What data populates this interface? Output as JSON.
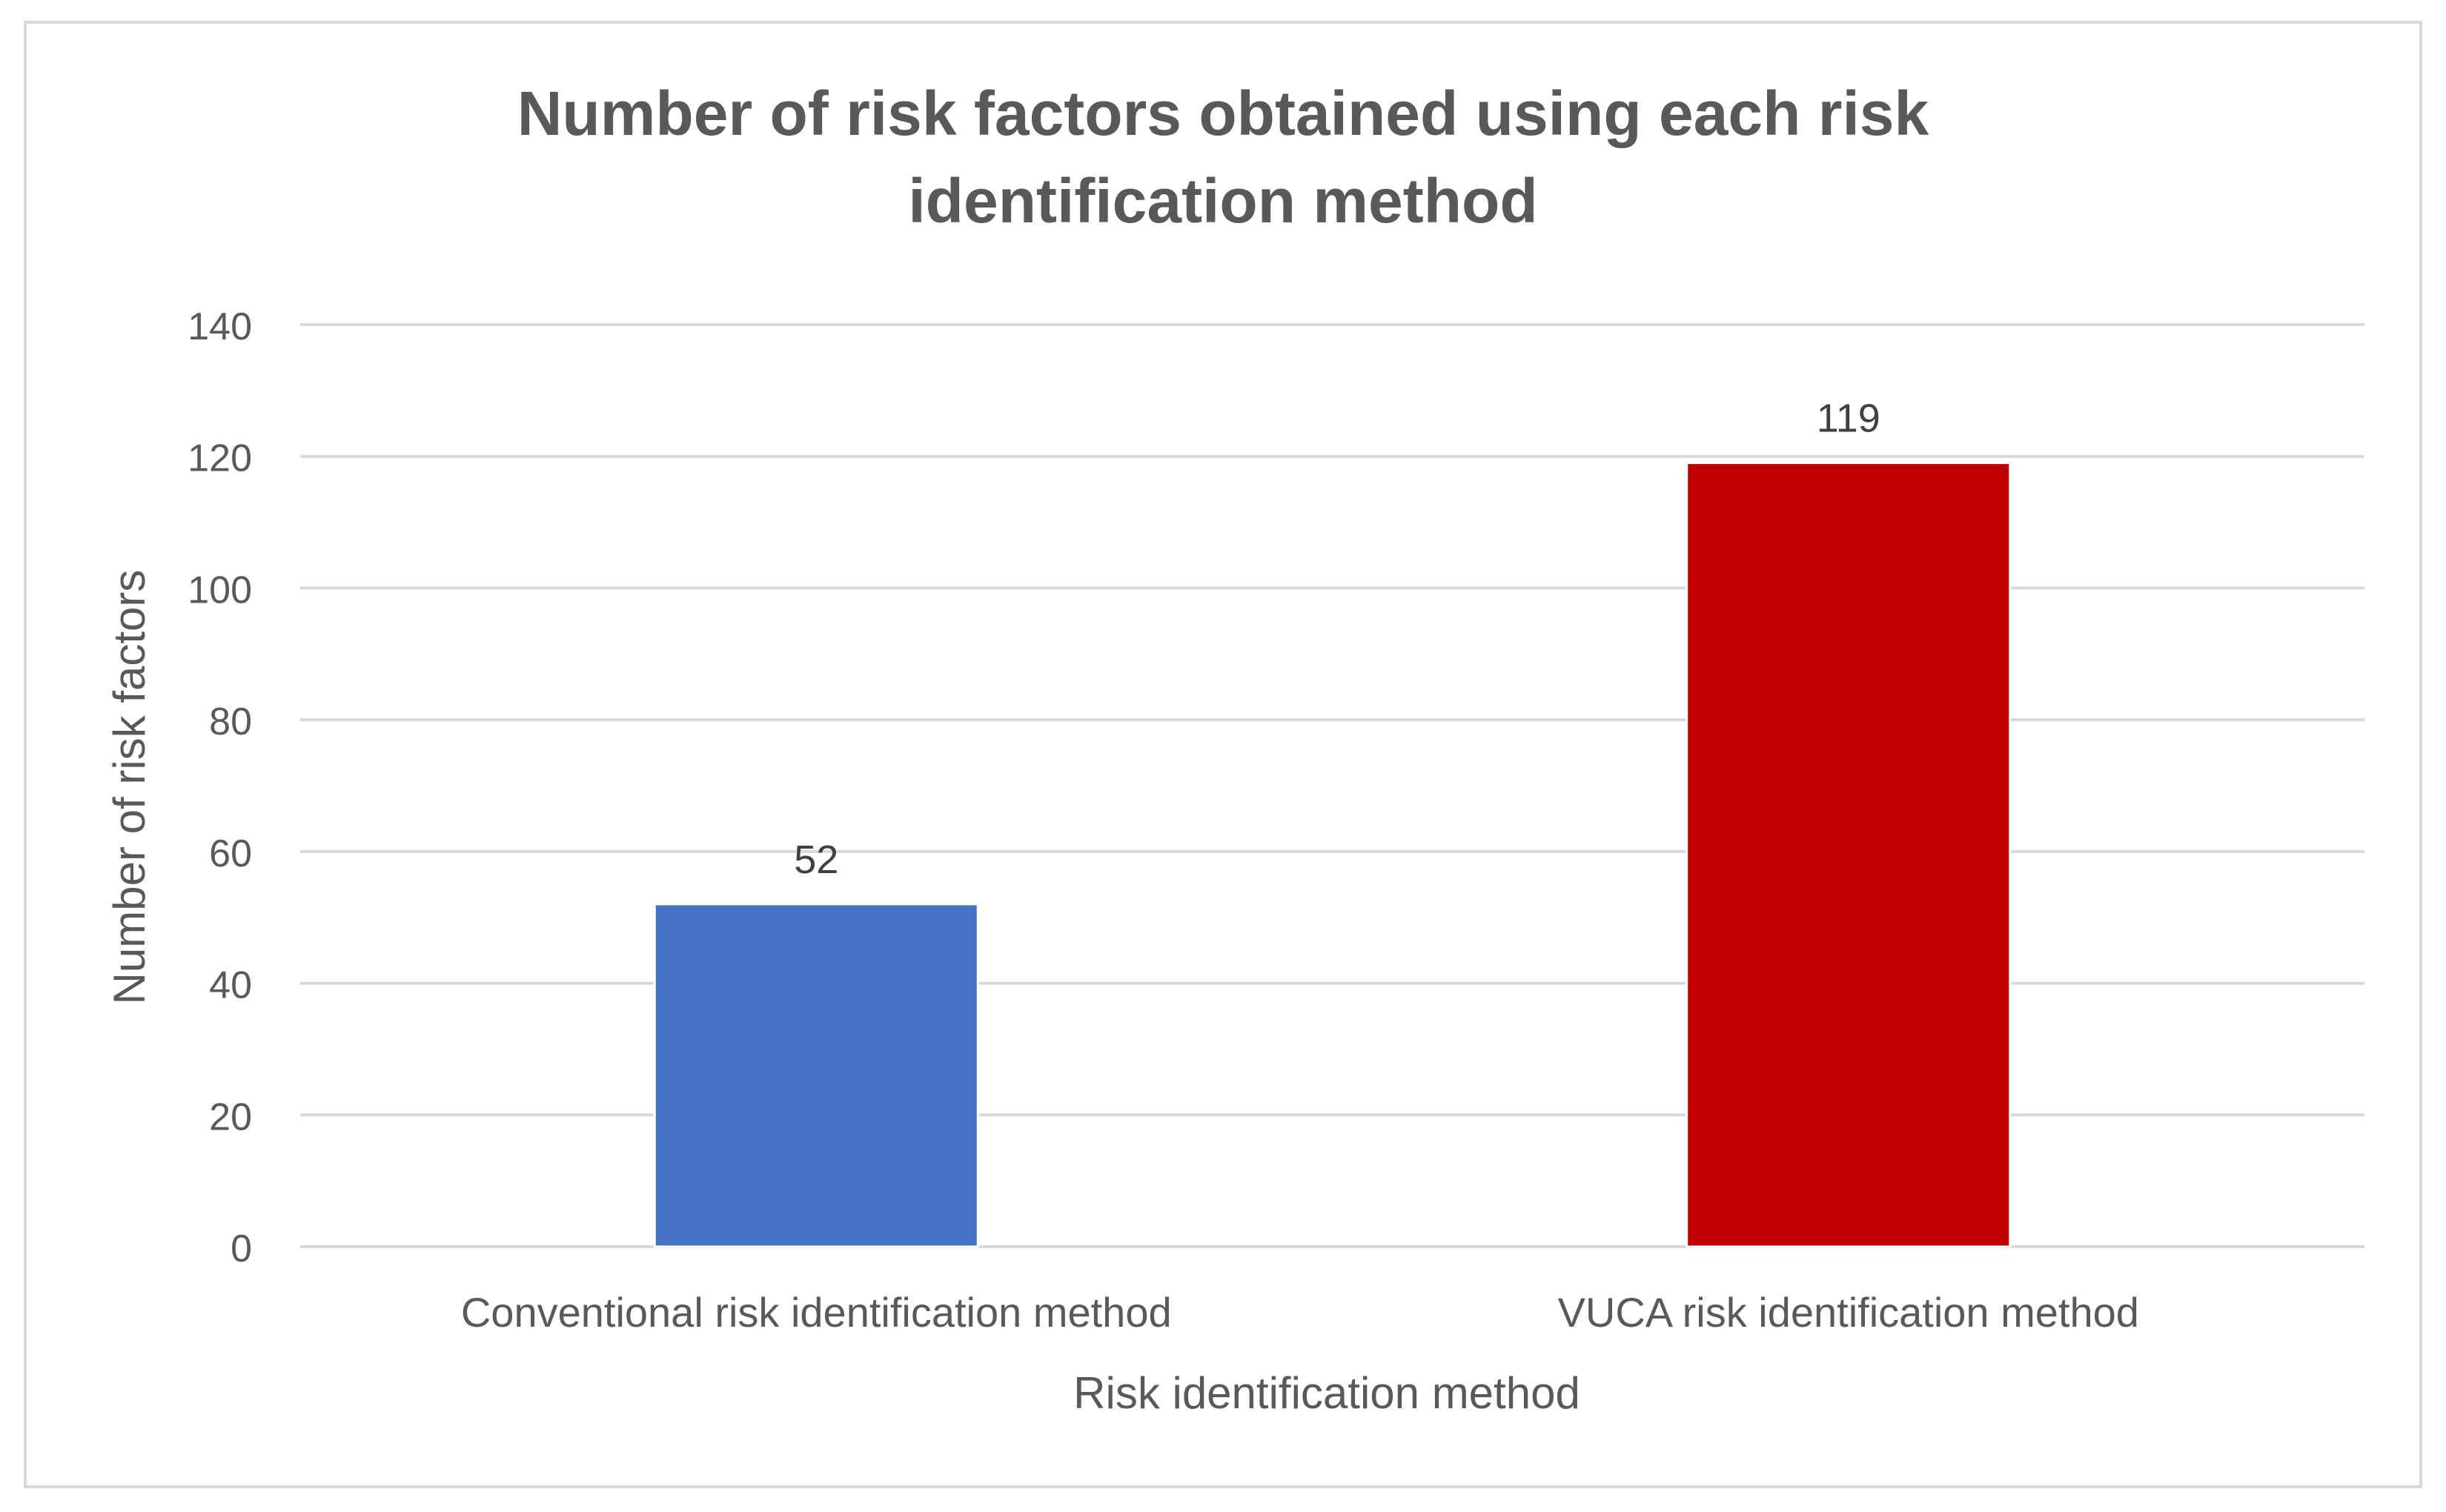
{
  "chart_data": {
    "type": "bar",
    "title_lines": [
      "Number of risk factors obtained using each risk",
      "identification method"
    ],
    "xlabel": "Risk identification method",
    "ylabel": "Number of risk factors",
    "categories": [
      "Conventional risk identification method",
      "VUCA risk identification method"
    ],
    "values": [
      52,
      119
    ],
    "data_labels": [
      "52",
      "119"
    ],
    "bar_colors": [
      "#4472C4",
      "#C00000"
    ],
    "ylim": [
      0,
      140
    ],
    "yticks": [
      0,
      20,
      40,
      60,
      80,
      100,
      120,
      140
    ],
    "ytick_labels": [
      "0",
      "20",
      "40",
      "60",
      "80",
      "100",
      "120",
      "140"
    ],
    "grid": true,
    "legend": "none"
  },
  "colors": {
    "title": "#595959",
    "axis_text": "#595959",
    "gridline": "#d9d9d9",
    "frame": "#d9d9d9"
  }
}
